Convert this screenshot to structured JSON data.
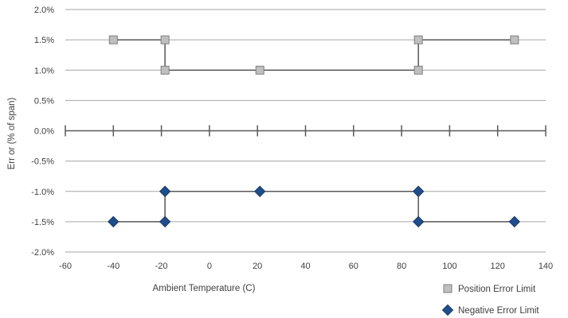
{
  "chart_data": {
    "type": "scatter",
    "xlabel": "Ambient Temperature (C)",
    "ylabel": "Err or (% of span)",
    "xlim": [
      -60,
      140
    ],
    "ylim": [
      -2.0,
      2.0
    ],
    "x_ticks": [
      "-60",
      "-40",
      "-20",
      "0",
      "20",
      "40",
      "60",
      "80",
      "100",
      "120",
      "140"
    ],
    "x_tick_values": [
      -60,
      -40,
      -20,
      0,
      20,
      40,
      60,
      80,
      100,
      120,
      140
    ],
    "y_ticks": [
      "2.0%",
      "1.5%",
      "1.0%",
      "0.5%",
      "0.0%",
      "-0.5%",
      "-1.0%",
      "-1.5%",
      "-2.0%"
    ],
    "y_tick_values": [
      2.0,
      1.5,
      1.0,
      0.5,
      0.0,
      -0.5,
      -1.0,
      -1.5,
      -2.0
    ],
    "grid": true,
    "legend_position": "bottom-right",
    "series": [
      {
        "name": "Position Error Limit",
        "marker": "square",
        "color": "#bfbfbf",
        "edge_color": "#7f7f7f",
        "line_color": "#595959",
        "x": [
          -40,
          -18.5,
          -18.5,
          21,
          87,
          87,
          127
        ],
        "y": [
          1.5,
          1.5,
          1.0,
          1.0,
          1.0,
          1.5,
          1.5
        ]
      },
      {
        "name": "Negative Error Limit",
        "marker": "diamond",
        "color": "#1f4e8c",
        "edge_color": "#1f3864",
        "line_color": "#595959",
        "x": [
          -40,
          -18.5,
          -18.5,
          21,
          87,
          87,
          127
        ],
        "y": [
          -1.5,
          -1.5,
          -1.0,
          -1.0,
          -1.0,
          -1.5,
          -1.5
        ]
      }
    ]
  }
}
